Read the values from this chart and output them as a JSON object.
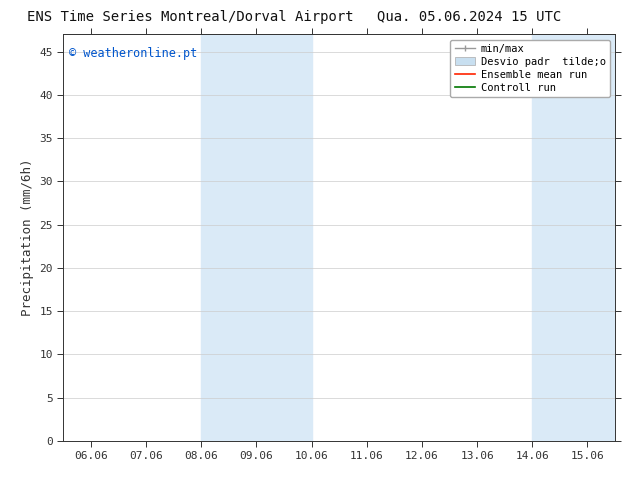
{
  "title_left": "ENS Time Series Montreal/Dorval Airport",
  "title_right": "Qua. 05.06.2024 15 UTC",
  "ylabel": "Precipitation (mm/6h)",
  "watermark": "© weatheronline.pt",
  "watermark_color": "#0055cc",
  "bg_color": "#ffffff",
  "plot_bg_color": "#ffffff",
  "xtick_values": [
    6.06,
    7.06,
    8.06,
    9.06,
    10.06,
    11.06,
    12.06,
    13.06,
    14.06,
    15.06
  ],
  "xtick_labels": [
    "06.06",
    "07.06",
    "08.06",
    "09.06",
    "10.06",
    "11.06",
    "12.06",
    "13.06",
    "14.06",
    "15.06"
  ],
  "xlim": [
    5.56,
    15.56
  ],
  "ylim": [
    0,
    47
  ],
  "yticks": [
    0,
    5,
    10,
    15,
    20,
    25,
    30,
    35,
    40,
    45
  ],
  "shade_regions": [
    [
      8.06,
      9.06
    ],
    [
      9.06,
      10.06
    ],
    [
      14.06,
      15.06
    ],
    [
      15.06,
      15.56
    ]
  ],
  "shade_color": "#daeaf7",
  "legend_label_minmax": "min/max",
  "legend_label_std": "Desvio padr  tilde;o",
  "legend_label_ensemble": "Ensemble mean run",
  "legend_label_control": "Controll run",
  "legend_color_minmax": "#999999",
  "legend_color_std": "#c8dff0",
  "legend_color_ensemble": "#ff2200",
  "legend_color_control": "#007700",
  "font_size_title": 10,
  "font_size_axis": 9,
  "font_size_ticks": 8,
  "font_size_legend": 7.5,
  "font_size_watermark": 8.5,
  "tick_color": "#333333",
  "axis_color": "#333333",
  "grid_color": "#cccccc",
  "top_line_color": "#999999"
}
